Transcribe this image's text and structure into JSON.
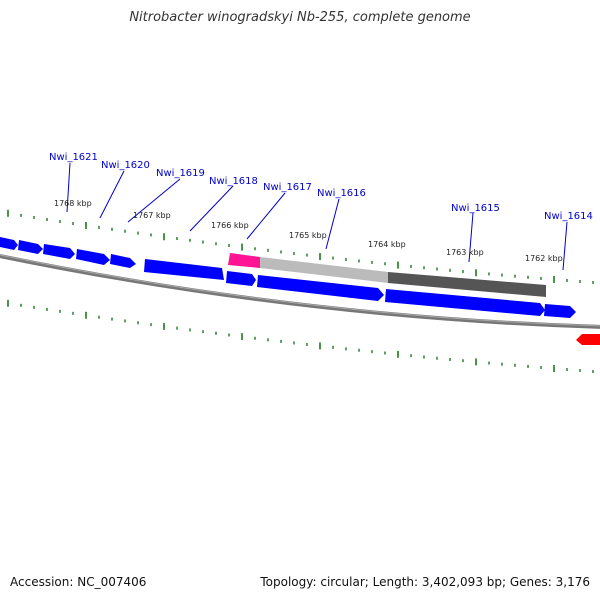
{
  "title": "Nitrobacter winogradskyi Nb-255, complete genome",
  "footer": {
    "accession": "Accession: NC_007406",
    "summary": "Topology: circular; Length: 3,402,093 bp; Genes: 3,176"
  },
  "scale_labels": [
    "1768 kbp",
    "1767 kbp",
    "1766 kbp",
    "1765 kbp",
    "1764 kbp",
    "1763 kbp",
    "1762 kbp"
  ],
  "gene_labels": [
    "Nwi_1621",
    "Nwi_1620",
    "Nwi_1619",
    "Nwi_1618",
    "Nwi_1617",
    "Nwi_1616",
    "Nwi_1615",
    "Nwi_1614"
  ],
  "colors": {
    "forward_gene": "#0000ff",
    "rna_gene": "#ff1493",
    "pseudo_light": "#bbbbbb",
    "pseudo_dark": "#555555",
    "reverse_gene": "#ff0000",
    "backbone": "#777777",
    "ticks": "#1a7a1a"
  }
}
